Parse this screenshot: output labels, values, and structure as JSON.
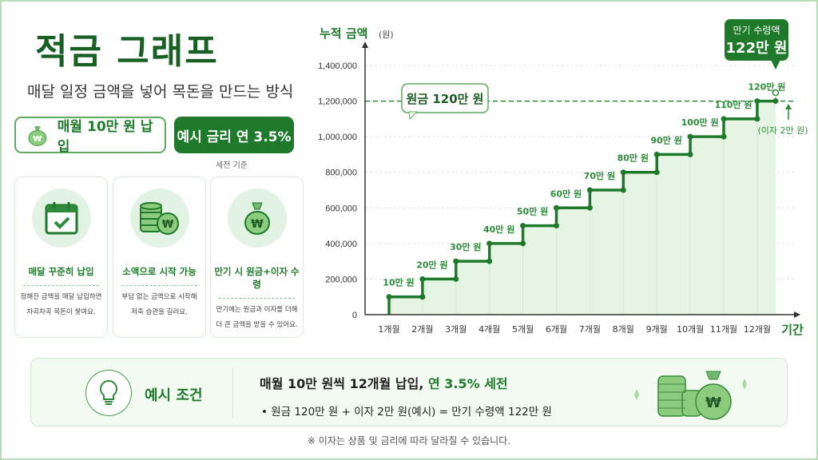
{
  "header": {
    "title": "적금 그래프",
    "subtitle": "매달 일정 금액을 넣어 목돈을 만드는 방식"
  },
  "pills": {
    "monthly": "매월 10만 원 납입",
    "rate": "예시 금리 연 3.5%",
    "rate_note": "세전 기준"
  },
  "cards": [
    {
      "icon": "calendar-check-icon",
      "title": "매달 꾸준히 납입",
      "line1": "정해진 금액을 매달 납입하면",
      "line2": "차곡차곡 목돈이 쌓여요."
    },
    {
      "icon": "coin-stack-icon",
      "title": "소액으로 시작 가능",
      "line1": "부담 없는 금액으로 시작해",
      "line2": "저축 습관을 길러요."
    },
    {
      "icon": "money-bag-icon",
      "title": "만기 시 원금+이자 수령",
      "line1": "만기에는 원금과 이자를 더해",
      "line2": "더 큰 금액을 받을 수 있어요."
    }
  ],
  "chart_data": {
    "type": "line",
    "step": true,
    "ylabel": "누적 금액",
    "ylabel_unit": "(원)",
    "xlabel": "기간",
    "ylim": [
      0,
      1400000
    ],
    "yticks": [
      "0",
      "200,000",
      "400,000",
      "600,000",
      "800,000",
      "1,000,000",
      "1,200,000",
      "1,400,000"
    ],
    "categories": [
      "1개월",
      "2개월",
      "3개월",
      "4개월",
      "5개월",
      "6개월",
      "7개월",
      "8개월",
      "9개월",
      "10개월",
      "11개월",
      "12개월"
    ],
    "values": [
      100000,
      200000,
      300000,
      400000,
      500000,
      600000,
      700000,
      800000,
      900000,
      1000000,
      1100000,
      1200000
    ],
    "data_labels": [
      "10만 원",
      "20만 원",
      "30만 원",
      "40만 원",
      "50만 원",
      "60만 원",
      "70만 원",
      "80만 원",
      "90만 원",
      "100만 원",
      "110만 원",
      "120만 원"
    ],
    "principal_line": {
      "value": 1200000,
      "label": "원금 120만 원"
    },
    "maturity": {
      "value": 1220000,
      "title": "만기 수령액",
      "amount": "122만 원",
      "interest_note": "(이자 2만 원)"
    },
    "grid": true,
    "colors": {
      "line": "#1e7a2a",
      "fill": "#e6f4e3",
      "grid": "#dddddd"
    }
  },
  "example": {
    "label": "예시 조건",
    "line1_main": "매월 10만 원씩 12개월 납입, ",
    "line1_accent": "연 3.5% 세전",
    "line2": "•  원금 120만 원  +  이자 2만 원(예시) = 만기 수령액 122만 원"
  },
  "footnote": "※ 이자는 상품 및 금리에 따라 달라질 수 있습니다."
}
